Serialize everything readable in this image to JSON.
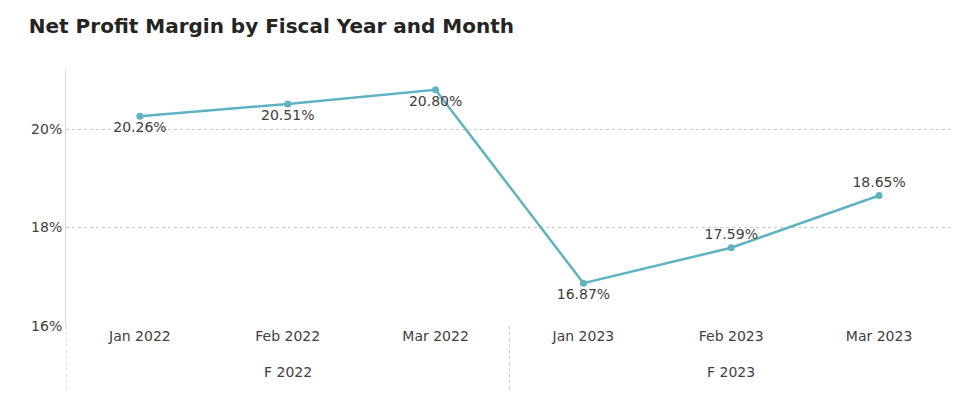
{
  "chart_data": {
    "type": "line",
    "title": "Net Profit Margin by Fiscal Year and Month",
    "categories": [
      "Jan 2022",
      "Feb 2022",
      "Mar 2022",
      "Jan 2023",
      "Feb 2023",
      "Mar 2023"
    ],
    "groups": [
      "F 2022",
      "F 2022",
      "F 2022",
      "F 2023",
      "F 2023",
      "F 2023"
    ],
    "values": [
      20.26,
      20.51,
      20.8,
      16.87,
      17.59,
      18.65
    ],
    "value_labels": [
      "20.26%",
      "20.51%",
      "20.80%",
      "16.87%",
      "17.59%",
      "18.65%"
    ],
    "color": "#5fb3c0",
    "ylim": [
      16,
      21.2
    ],
    "yticks": [
      {
        "value": 16,
        "label": "16%"
      },
      {
        "value": 18,
        "label": "18%"
      },
      {
        "value": 20,
        "label": "20%"
      }
    ],
    "grid": true,
    "data_labels": true,
    "marker": "circle"
  }
}
